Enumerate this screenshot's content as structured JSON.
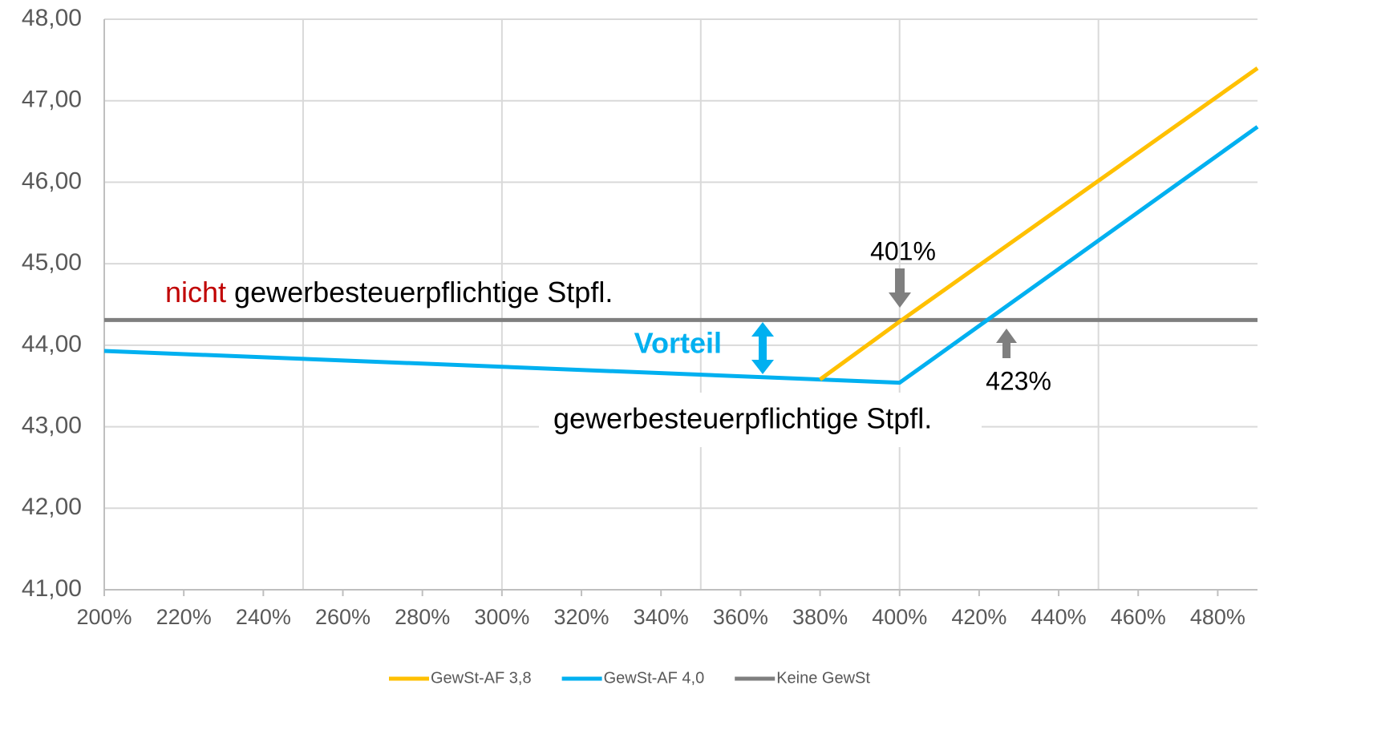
{
  "chart_data": {
    "type": "line",
    "x": [
      200,
      380,
      400,
      490
    ],
    "series": [
      {
        "name": "GewSt-AF 3,8",
        "color": "#FFC000",
        "values": [
          null,
          43.58,
          44.29,
          47.4
        ]
      },
      {
        "name": "GewSt-AF 4,0",
        "color": "#00B0F0",
        "values": [
          43.93,
          43.58,
          43.54,
          46.68
        ]
      },
      {
        "name": "Keine GewSt",
        "color": "#7F7F7F",
        "values": [
          44.31,
          44.31,
          44.31,
          44.31
        ]
      }
    ],
    "xlim": [
      200,
      490
    ],
    "xticks": [
      {
        "value": 200,
        "label": "200%"
      },
      {
        "value": 220,
        "label": "220%"
      },
      {
        "value": 240,
        "label": "240%"
      },
      {
        "value": 260,
        "label": "260%"
      },
      {
        "value": 280,
        "label": "280%"
      },
      {
        "value": 300,
        "label": "300%"
      },
      {
        "value": 320,
        "label": "320%"
      },
      {
        "value": 340,
        "label": "340%"
      },
      {
        "value": 360,
        "label": "360%"
      },
      {
        "value": 380,
        "label": "380%"
      },
      {
        "value": 400,
        "label": "400%"
      },
      {
        "value": 420,
        "label": "420%"
      },
      {
        "value": 440,
        "label": "440%"
      },
      {
        "value": 460,
        "label": "460%"
      },
      {
        "value": 480,
        "label": "480%"
      }
    ],
    "xgrid": [
      200,
      250,
      300,
      350,
      400,
      450
    ],
    "ylim": [
      41,
      48
    ],
    "yticks": [
      {
        "value": 41,
        "label": "41,00"
      },
      {
        "value": 42,
        "label": "42,00"
      },
      {
        "value": 43,
        "label": "43,00"
      },
      {
        "value": 44,
        "label": "44,00"
      },
      {
        "value": 45,
        "label": "45,00"
      },
      {
        "value": 46,
        "label": "46,00"
      },
      {
        "value": 47,
        "label": "47,00"
      },
      {
        "value": 48,
        "label": "48,00"
      }
    ],
    "grid": true,
    "legend": "bottom",
    "annotations": {
      "nicht": "nicht",
      "non_taxable": " gewerbesteuerpflichtige Stpfl.",
      "taxable": "gewerbesteuerpflichtige Stpfl.",
      "advantage": "Vorteil",
      "mark_401": "401%",
      "mark_423": "423%"
    }
  }
}
